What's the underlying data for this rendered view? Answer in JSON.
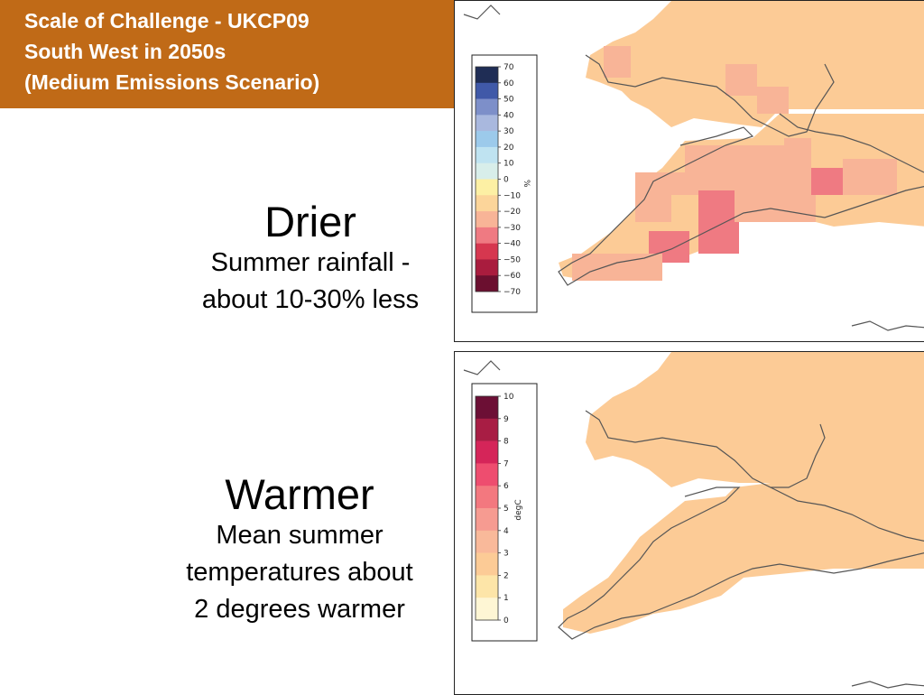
{
  "header": {
    "line1": "Scale of Challenge - UKCP09",
    "line2": "South West in 2050s",
    "line3": "(Medium Emissions Scenario)",
    "background": "#c06a17"
  },
  "rainfall": {
    "heading": "Drier",
    "line1": "Summer rainfall -",
    "line2": "about 10-30% less"
  },
  "temperature": {
    "heading": "Warmer",
    "line1": "Mean summer",
    "line2": "temperatures about",
    "line3": "2 degrees warmer"
  },
  "rain_map": {
    "colorbar_unit": "%",
    "ticks": [
      "70",
      "60",
      "50",
      "40",
      "30",
      "20",
      "10",
      "0",
      "−10",
      "−20",
      "−30",
      "−40",
      "−50",
      "−60",
      "−70"
    ],
    "colors": [
      "#1f2d55",
      "#4059a8",
      "#7d8fc9",
      "#a9b8de",
      "#9ccaeb",
      "#bfe3f1",
      "#d8eeea",
      "#fdf0a4",
      "#fcd59a",
      "#f8b497",
      "#ef7a82",
      "#d6374f",
      "#a91c3e",
      "#6b0f2f"
    ]
  },
  "temp_map": {
    "colorbar_unit": "degC",
    "ticks": [
      "10",
      "9",
      "8",
      "7",
      "6",
      "5",
      "4",
      "3",
      "2",
      "1",
      "0"
    ],
    "colors": [
      "#6c0f35",
      "#a81d44",
      "#d52559",
      "#ee4d6f",
      "#f3787f",
      "#f69b91",
      "#f9b99a",
      "#fccb96",
      "#fde5a8",
      "#fef6d4"
    ]
  }
}
